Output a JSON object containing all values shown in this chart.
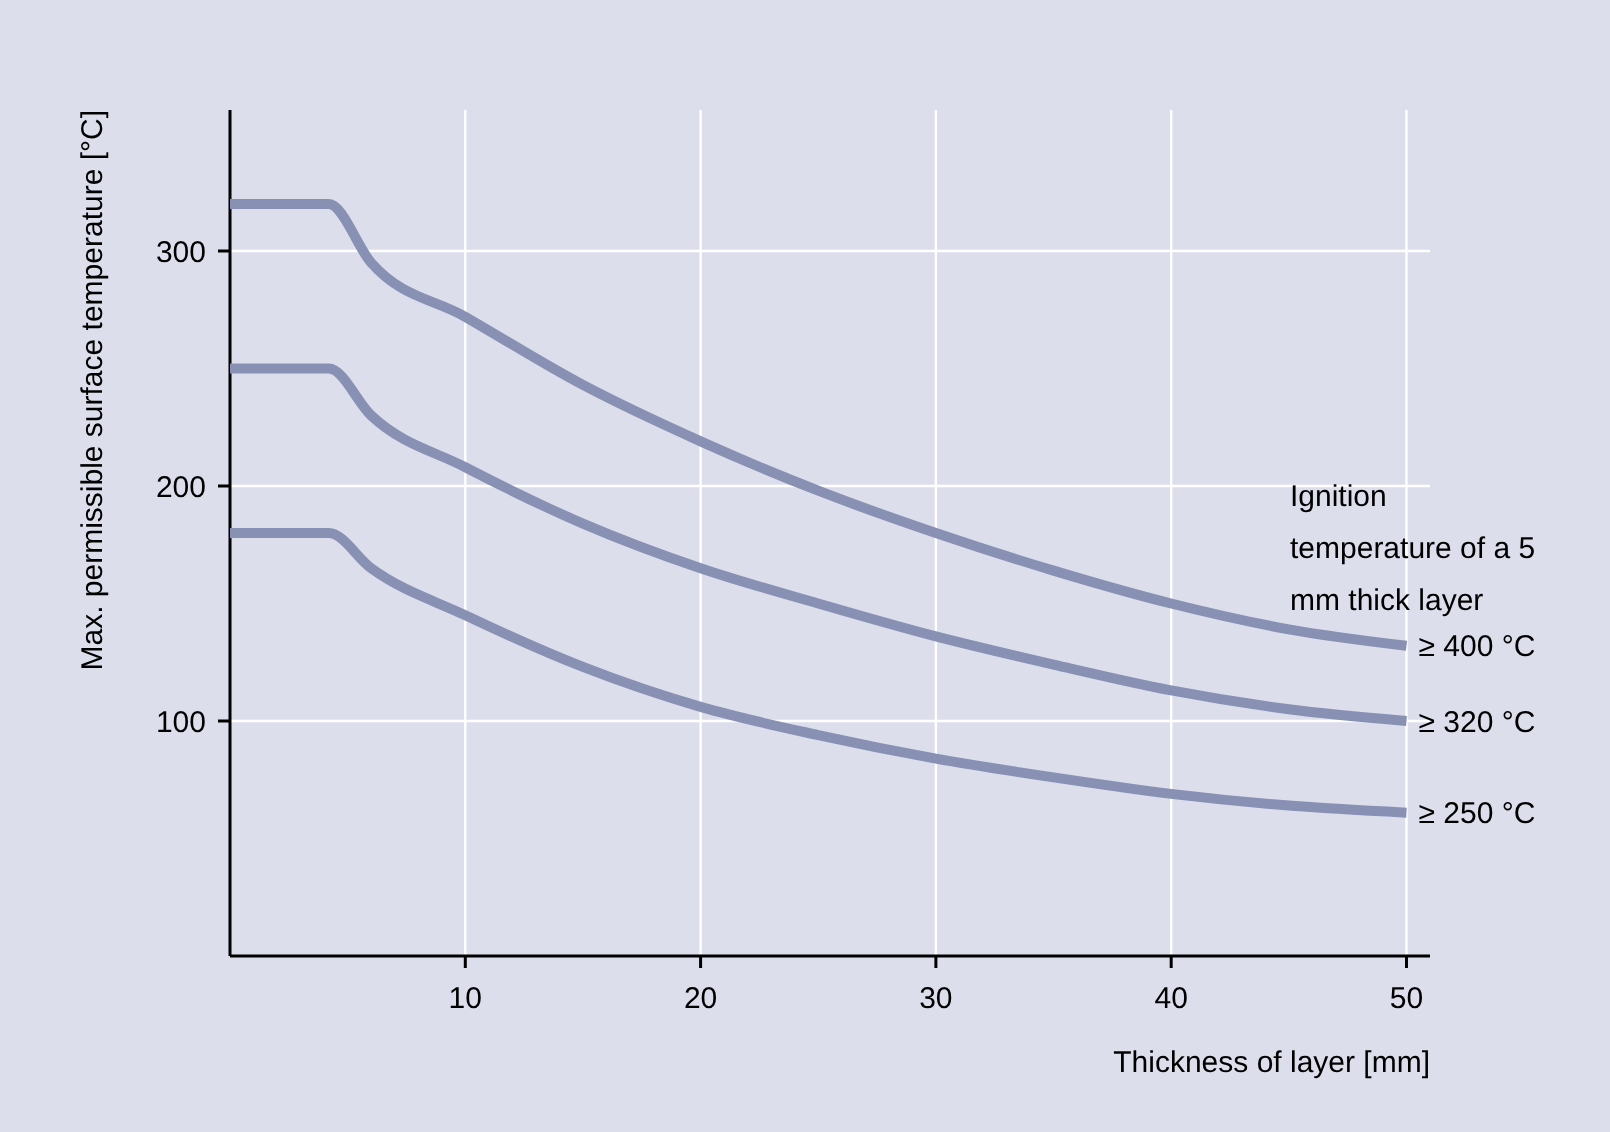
{
  "chart_data": {
    "type": "line",
    "xlabel": "Thickness of layer [mm]",
    "ylabel": "Max. permissible surface temperature [°C]",
    "legend_title": "Ignition temperature of a 5 mm thick layer",
    "x": [
      0,
      4.2,
      6,
      10,
      15,
      20,
      25,
      30,
      35,
      40,
      45,
      50
    ],
    "series": [
      {
        "name": "≥ 400 °C",
        "color": "#8890b4",
        "values": [
          320,
          320,
          295,
          272,
          243,
          219,
          198,
          180,
          164,
          150,
          139,
          132
        ]
      },
      {
        "name": "≥ 320 °C",
        "color": "#8890b4",
        "values": [
          250,
          250,
          230,
          208,
          184,
          165,
          150,
          136,
          124,
          113,
          105,
          100
        ]
      },
      {
        "name": "≥ 250 °C",
        "color": "#8890b4",
        "values": [
          180,
          180,
          165,
          145,
          123,
          106,
          94,
          84,
          76,
          69,
          64,
          61
        ]
      }
    ],
    "xlim": [
      0,
      51
    ],
    "xticks": [
      10,
      20,
      30,
      40,
      50
    ],
    "ylim": [
      0,
      360
    ],
    "yticks": [
      100,
      200,
      300
    ],
    "grid": true,
    "legend": "right",
    "marker": "none",
    "line_style": "solid"
  }
}
